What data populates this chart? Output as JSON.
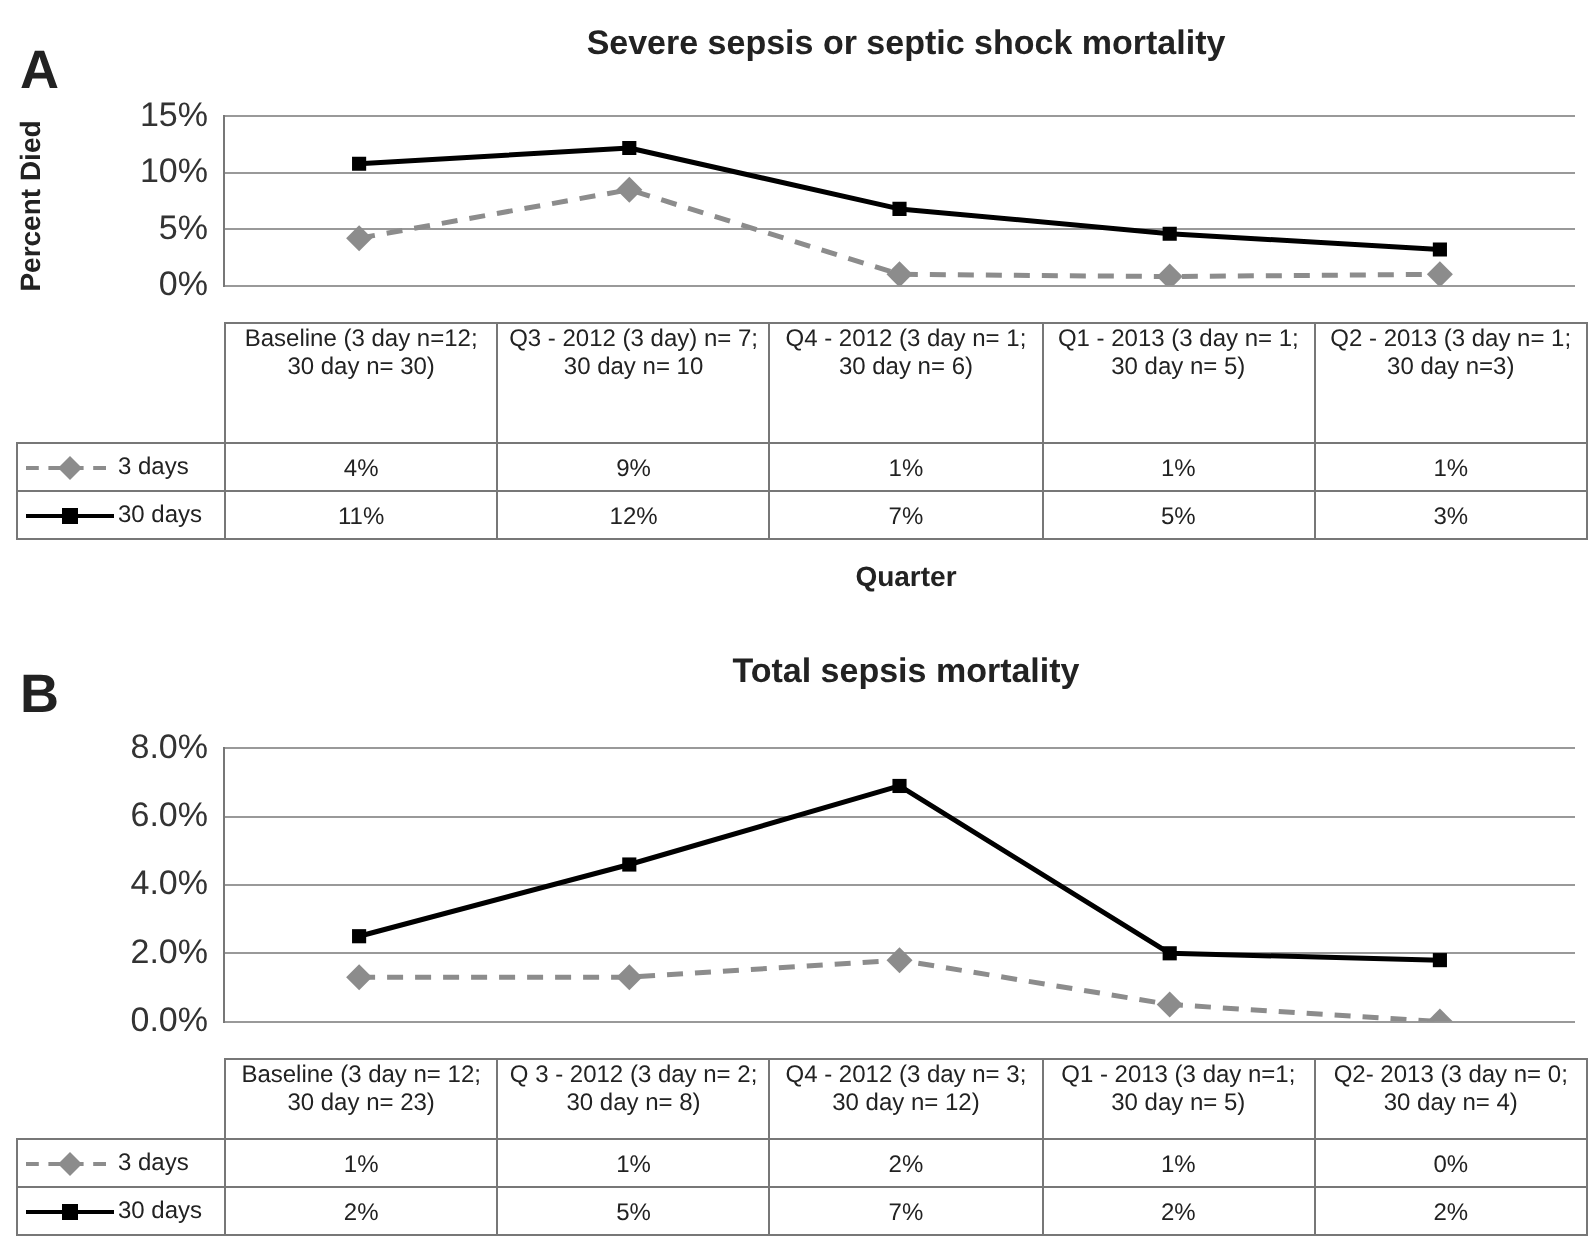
{
  "chart_data": [
    {
      "type": "line",
      "title": "Severe sepsis or septic shock mortality",
      "xlabel": "Quarter",
      "ylabel": "Percent Died",
      "annotations": [
        "A"
      ],
      "categories": [
        "Baseline (3 day n=12; 30 day n= 30)",
        "Q3 - 2012 (3 day) n= 7; 30 day n= 10",
        "Q4 - 2012 (3 day n= 1; 30 day n= 6)",
        "Q1 - 2013 (3 day n= 1; 30 day n= 5)",
        "Q2 - 2013 (3 day n= 1; 30 day n=3)"
      ],
      "series": [
        {
          "name": "3 days",
          "color": "#8c8c8c",
          "marker": "diamond",
          "line_style": "dashed",
          "values": [
            4.2,
            8.5,
            1.0,
            0.8,
            1.0
          ],
          "value_labels": [
            "4%",
            "9%",
            "1%",
            "1%",
            "1%"
          ]
        },
        {
          "name": "30 days",
          "color": "#000000",
          "marker": "square",
          "line_style": "solid",
          "values": [
            10.8,
            12.2,
            6.8,
            4.6,
            3.2
          ],
          "value_labels": [
            "11%",
            "12%",
            "7%",
            "5%",
            "3%"
          ]
        }
      ],
      "ylim": [
        0,
        15
      ],
      "yticks": [
        {
          "value": 0,
          "label": "0%"
        },
        {
          "value": 5,
          "label": "5%"
        },
        {
          "value": 10,
          "label": "10%"
        },
        {
          "value": 15,
          "label": "15%"
        }
      ],
      "grid": "y",
      "legend": "bottom"
    },
    {
      "type": "line",
      "title": "Total sepsis mortality",
      "annotations": [
        "B"
      ],
      "categories": [
        "Baseline (3 day n= 12; 30 day n= 23)",
        "Q 3 - 2012 (3 day n= 2; 30 day n= 8)",
        "Q4 - 2012 (3 day n= 3; 30 day n= 12)",
        "Q1 - 2013 (3 day n=1; 30 day n= 5)",
        "Q2- 2013 (3 day n= 0; 30 day n= 4)"
      ],
      "series": [
        {
          "name": "3 days",
          "color": "#8c8c8c",
          "marker": "diamond",
          "line_style": "dashed",
          "values": [
            1.3,
            1.3,
            1.8,
            0.5,
            0.0
          ],
          "value_labels": [
            "1%",
            "1%",
            "2%",
            "1%",
            "0%"
          ]
        },
        {
          "name": "30 days",
          "color": "#000000",
          "marker": "square",
          "line_style": "solid",
          "values": [
            2.5,
            4.6,
            6.9,
            2.0,
            1.8
          ],
          "value_labels": [
            "2%",
            "5%",
            "7%",
            "2%",
            "2%"
          ]
        }
      ],
      "ylim": [
        0,
        8
      ],
      "yticks": [
        {
          "value": 0,
          "label": "0.0%"
        },
        {
          "value": 2,
          "label": "2.0%"
        },
        {
          "value": 4,
          "label": "4.0%"
        },
        {
          "value": 6,
          "label": "6.0%"
        },
        {
          "value": 8,
          "label": "8.0%"
        }
      ],
      "grid": "y",
      "legend": "bottom"
    }
  ]
}
